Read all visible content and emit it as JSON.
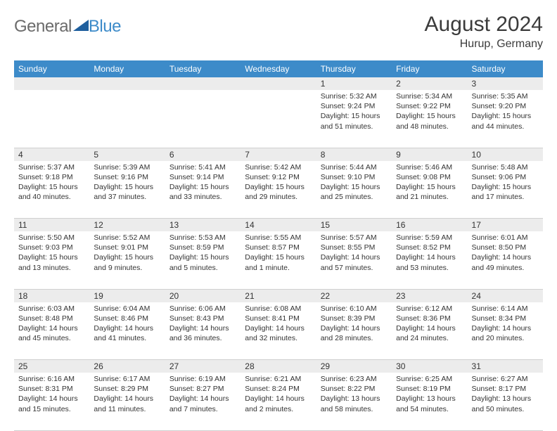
{
  "logo": {
    "textA": "General",
    "textB": "Blue",
    "colorA": "#6b6b6b",
    "colorB": "#3d8bc9"
  },
  "title": "August 2024",
  "location": "Hurup, Germany",
  "header_bg": "#3d8bc9",
  "daynum_bg": "#ececec",
  "days": [
    "Sunday",
    "Monday",
    "Tuesday",
    "Wednesday",
    "Thursday",
    "Friday",
    "Saturday"
  ],
  "weeks": [
    [
      null,
      null,
      null,
      null,
      {
        "n": "1",
        "sr": "5:32 AM",
        "ss": "9:24 PM",
        "dl": "15 hours and 51 minutes."
      },
      {
        "n": "2",
        "sr": "5:34 AM",
        "ss": "9:22 PM",
        "dl": "15 hours and 48 minutes."
      },
      {
        "n": "3",
        "sr": "5:35 AM",
        "ss": "9:20 PM",
        "dl": "15 hours and 44 minutes."
      }
    ],
    [
      {
        "n": "4",
        "sr": "5:37 AM",
        "ss": "9:18 PM",
        "dl": "15 hours and 40 minutes."
      },
      {
        "n": "5",
        "sr": "5:39 AM",
        "ss": "9:16 PM",
        "dl": "15 hours and 37 minutes."
      },
      {
        "n": "6",
        "sr": "5:41 AM",
        "ss": "9:14 PM",
        "dl": "15 hours and 33 minutes."
      },
      {
        "n": "7",
        "sr": "5:42 AM",
        "ss": "9:12 PM",
        "dl": "15 hours and 29 minutes."
      },
      {
        "n": "8",
        "sr": "5:44 AM",
        "ss": "9:10 PM",
        "dl": "15 hours and 25 minutes."
      },
      {
        "n": "9",
        "sr": "5:46 AM",
        "ss": "9:08 PM",
        "dl": "15 hours and 21 minutes."
      },
      {
        "n": "10",
        "sr": "5:48 AM",
        "ss": "9:06 PM",
        "dl": "15 hours and 17 minutes."
      }
    ],
    [
      {
        "n": "11",
        "sr": "5:50 AM",
        "ss": "9:03 PM",
        "dl": "15 hours and 13 minutes."
      },
      {
        "n": "12",
        "sr": "5:52 AM",
        "ss": "9:01 PM",
        "dl": "15 hours and 9 minutes."
      },
      {
        "n": "13",
        "sr": "5:53 AM",
        "ss": "8:59 PM",
        "dl": "15 hours and 5 minutes."
      },
      {
        "n": "14",
        "sr": "5:55 AM",
        "ss": "8:57 PM",
        "dl": "15 hours and 1 minute."
      },
      {
        "n": "15",
        "sr": "5:57 AM",
        "ss": "8:55 PM",
        "dl": "14 hours and 57 minutes."
      },
      {
        "n": "16",
        "sr": "5:59 AM",
        "ss": "8:52 PM",
        "dl": "14 hours and 53 minutes."
      },
      {
        "n": "17",
        "sr": "6:01 AM",
        "ss": "8:50 PM",
        "dl": "14 hours and 49 minutes."
      }
    ],
    [
      {
        "n": "18",
        "sr": "6:03 AM",
        "ss": "8:48 PM",
        "dl": "14 hours and 45 minutes."
      },
      {
        "n": "19",
        "sr": "6:04 AM",
        "ss": "8:46 PM",
        "dl": "14 hours and 41 minutes."
      },
      {
        "n": "20",
        "sr": "6:06 AM",
        "ss": "8:43 PM",
        "dl": "14 hours and 36 minutes."
      },
      {
        "n": "21",
        "sr": "6:08 AM",
        "ss": "8:41 PM",
        "dl": "14 hours and 32 minutes."
      },
      {
        "n": "22",
        "sr": "6:10 AM",
        "ss": "8:39 PM",
        "dl": "14 hours and 28 minutes."
      },
      {
        "n": "23",
        "sr": "6:12 AM",
        "ss": "8:36 PM",
        "dl": "14 hours and 24 minutes."
      },
      {
        "n": "24",
        "sr": "6:14 AM",
        "ss": "8:34 PM",
        "dl": "14 hours and 20 minutes."
      }
    ],
    [
      {
        "n": "25",
        "sr": "6:16 AM",
        "ss": "8:31 PM",
        "dl": "14 hours and 15 minutes."
      },
      {
        "n": "26",
        "sr": "6:17 AM",
        "ss": "8:29 PM",
        "dl": "14 hours and 11 minutes."
      },
      {
        "n": "27",
        "sr": "6:19 AM",
        "ss": "8:27 PM",
        "dl": "14 hours and 7 minutes."
      },
      {
        "n": "28",
        "sr": "6:21 AM",
        "ss": "8:24 PM",
        "dl": "14 hours and 2 minutes."
      },
      {
        "n": "29",
        "sr": "6:23 AM",
        "ss": "8:22 PM",
        "dl": "13 hours and 58 minutes."
      },
      {
        "n": "30",
        "sr": "6:25 AM",
        "ss": "8:19 PM",
        "dl": "13 hours and 54 minutes."
      },
      {
        "n": "31",
        "sr": "6:27 AM",
        "ss": "8:17 PM",
        "dl": "13 hours and 50 minutes."
      }
    ]
  ],
  "labels": {
    "sunrise": "Sunrise:",
    "sunset": "Sunset:",
    "daylight": "Daylight:"
  }
}
